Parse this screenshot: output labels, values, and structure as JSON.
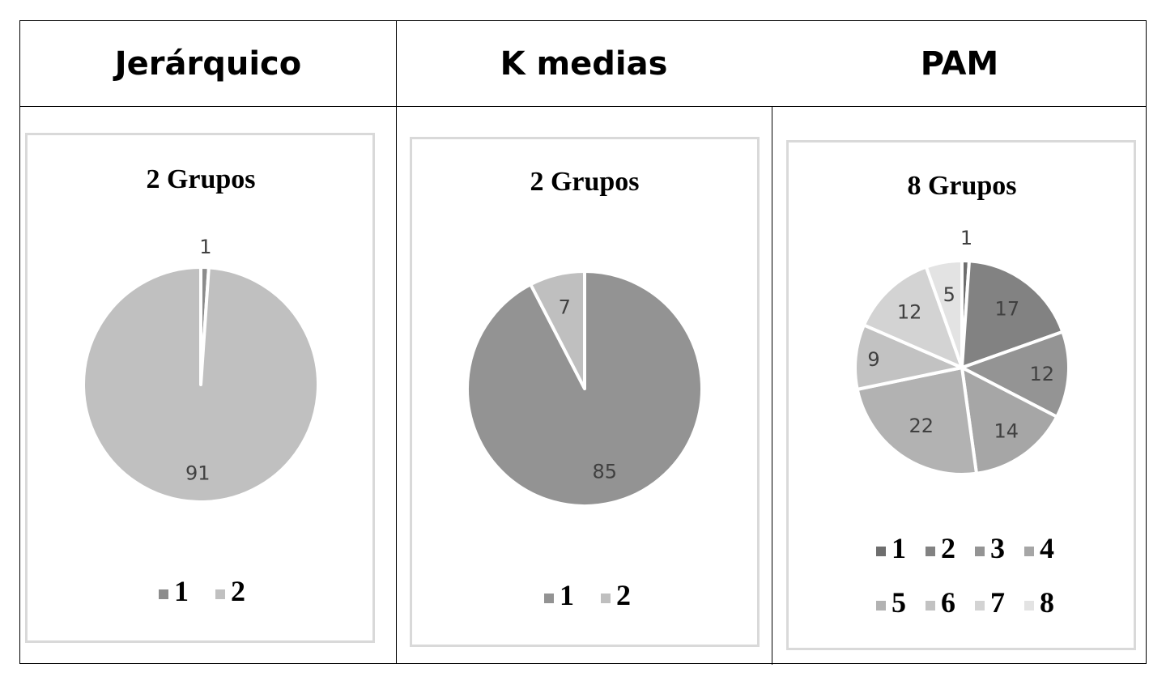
{
  "headers": [
    "Jerárquico",
    "K medias",
    "PAM"
  ],
  "chart_data": [
    {
      "type": "pie",
      "title": "2 Grupos",
      "categories": [
        "1",
        "2"
      ],
      "values": [
        1,
        91
      ],
      "colors": [
        "#8c8c8c",
        "#c0c0c0"
      ],
      "legend_position": "bottom"
    },
    {
      "type": "pie",
      "title": "2 Grupos",
      "categories": [
        "1",
        "2"
      ],
      "values": [
        85,
        7
      ],
      "colors": [
        "#939393",
        "#bfbfbf"
      ],
      "legend_position": "bottom"
    },
    {
      "type": "pie",
      "title": "8 Grupos",
      "categories": [
        "1",
        "2",
        "3",
        "4",
        "5",
        "6",
        "7",
        "8"
      ],
      "values": [
        1,
        17,
        12,
        14,
        22,
        9,
        12,
        5
      ],
      "colors": [
        "#6e6e6e",
        "#828282",
        "#949494",
        "#a6a6a6",
        "#b2b2b2",
        "#c2c2c2",
        "#d3d3d3",
        "#e3e3e3"
      ],
      "legend_position": "bottom"
    }
  ]
}
